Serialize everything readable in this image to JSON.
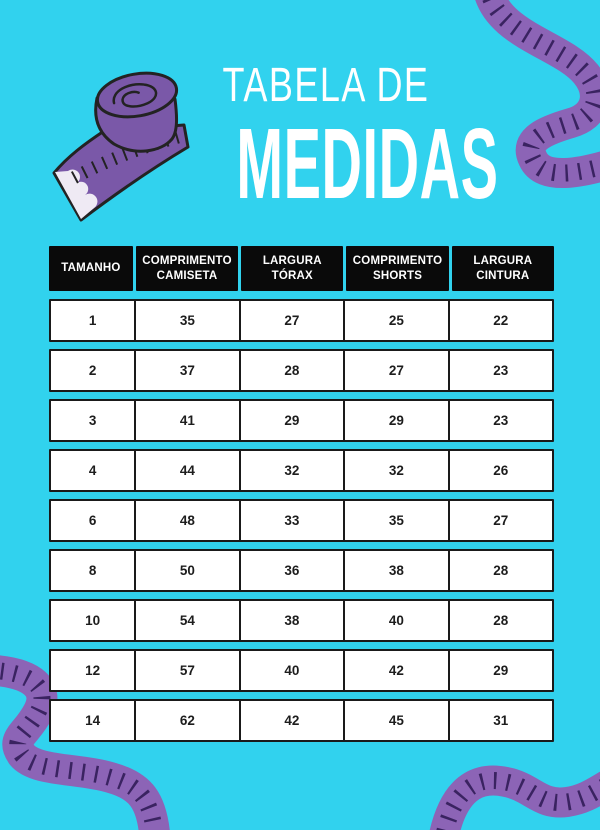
{
  "header": {
    "title_line1": "TABELA DE",
    "title_line2": "MEDIDAS"
  },
  "table": {
    "columns": [
      "TAMANHO",
      "COMPRIMENTO CAMISETA",
      "LARGURA TÓRAX",
      "COMPRIMENTO SHORTS",
      "LARGURA CINTURA"
    ],
    "rows": [
      [
        "1",
        "35",
        "27",
        "25",
        "22"
      ],
      [
        "2",
        "37",
        "28",
        "27",
        "23"
      ],
      [
        "3",
        "41",
        "29",
        "29",
        "23"
      ],
      [
        "4",
        "44",
        "32",
        "32",
        "26"
      ],
      [
        "6",
        "48",
        "33",
        "35",
        "27"
      ],
      [
        "8",
        "50",
        "36",
        "38",
        "28"
      ],
      [
        "10",
        "54",
        "38",
        "40",
        "28"
      ],
      [
        "12",
        "57",
        "40",
        "42",
        "29"
      ],
      [
        "14",
        "62",
        "42",
        "45",
        "31"
      ]
    ]
  },
  "decorations": {
    "tape_roll_icon": "measuring-tape-roll",
    "ribbon_icons": [
      "tape-ribbon-top-right",
      "tape-ribbon-bottom-left",
      "tape-ribbon-bottom-right"
    ]
  },
  "colors": {
    "background": "#31d2ee",
    "header_cell_bg": "#0a0a0a",
    "header_cell_text": "#ffffff",
    "row_bg": "#ffffff",
    "row_border": "#1a1a1a",
    "row_text": "#1d1d1d",
    "title_text": "#ffffff",
    "tape_purple": "#7a58a8",
    "ribbon_purple": "#8c64b6",
    "ribbon_tick": "#3a2361",
    "tape_tip_white": "#efeaf4",
    "ink_outline": "#232323"
  }
}
